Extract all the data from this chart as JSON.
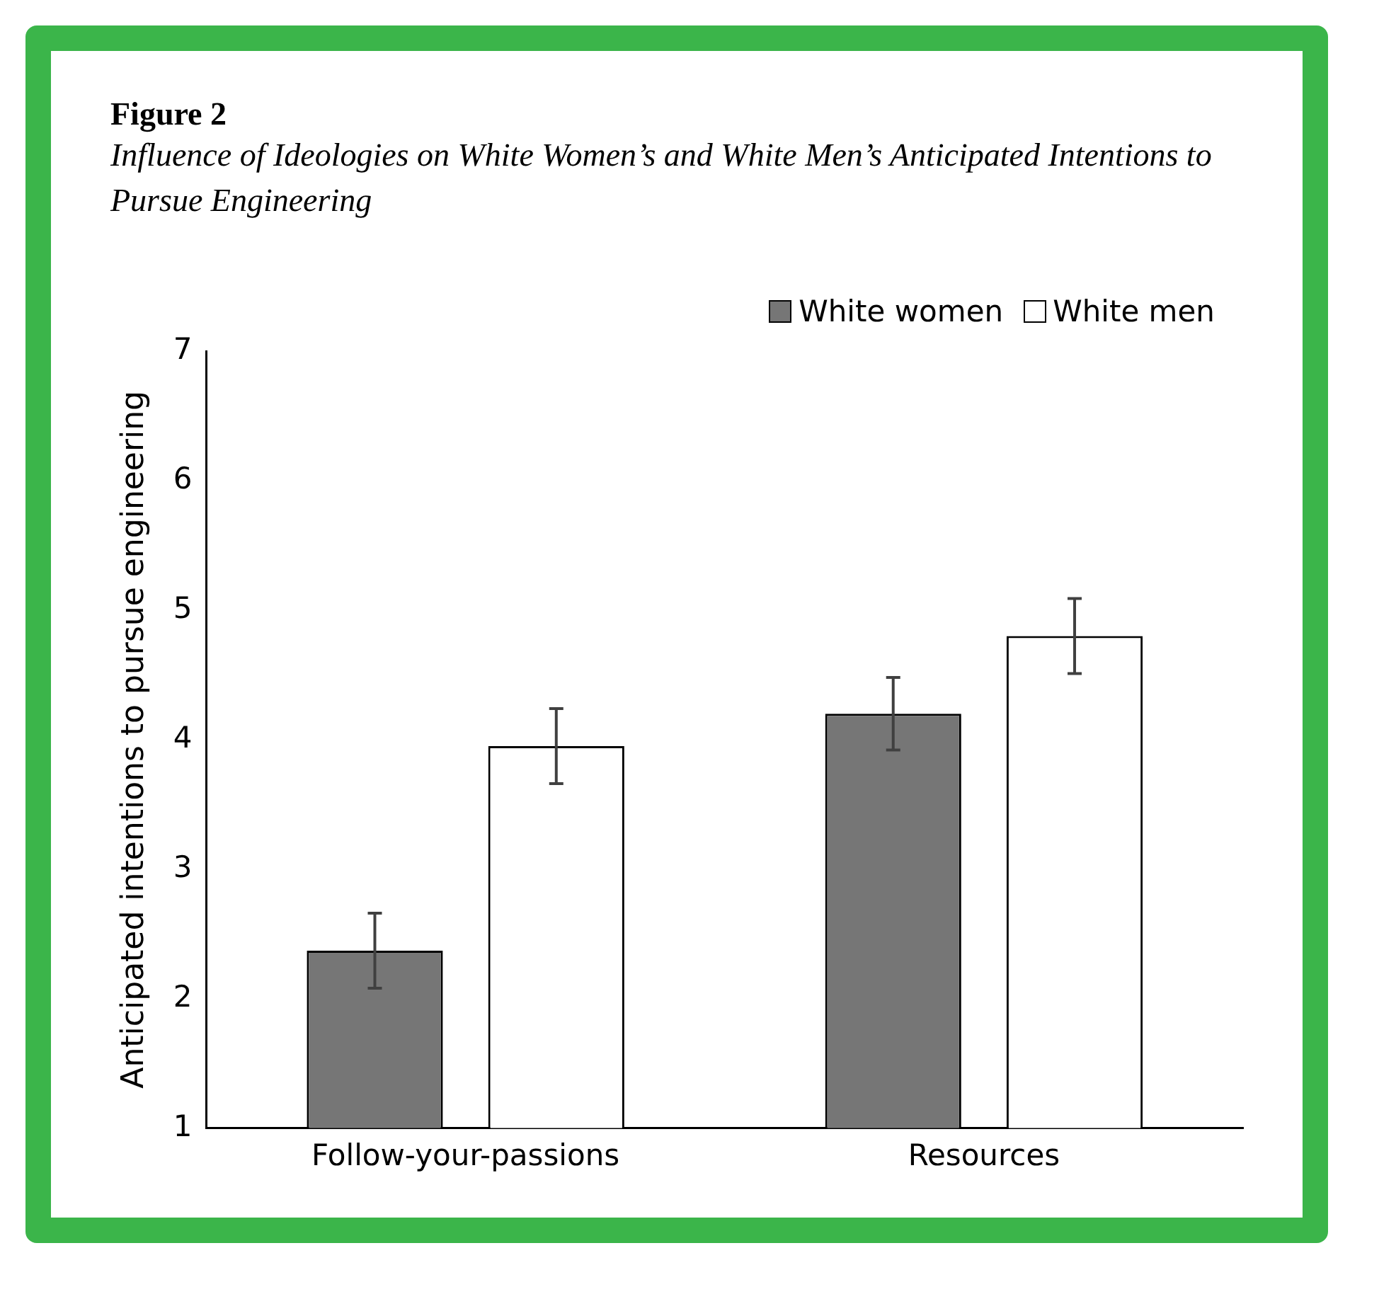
{
  "chart_data": {
    "type": "bar",
    "title": "Figure 2",
    "subtitle": "Influence of Ideologies on White Women’s and White Men’s Anticipated Intentions to Pursue Engineering",
    "ylabel": "Anticipated intentions to pursue engineering",
    "categories": [
      "Follow-your-passions",
      "Resources"
    ],
    "series": [
      {
        "name": "White women",
        "color": "#767676",
        "values": [
          2.37,
          4.2
        ],
        "errors": [
          0.29,
          0.28
        ]
      },
      {
        "name": "White men",
        "color": "#ffffff",
        "values": [
          3.95,
          4.8
        ],
        "errors": [
          0.29,
          0.29
        ]
      }
    ],
    "ylim": [
      1,
      7
    ],
    "yticks": [
      1,
      2,
      3,
      4,
      5,
      6,
      7
    ],
    "grid": false,
    "legend": "top right"
  }
}
